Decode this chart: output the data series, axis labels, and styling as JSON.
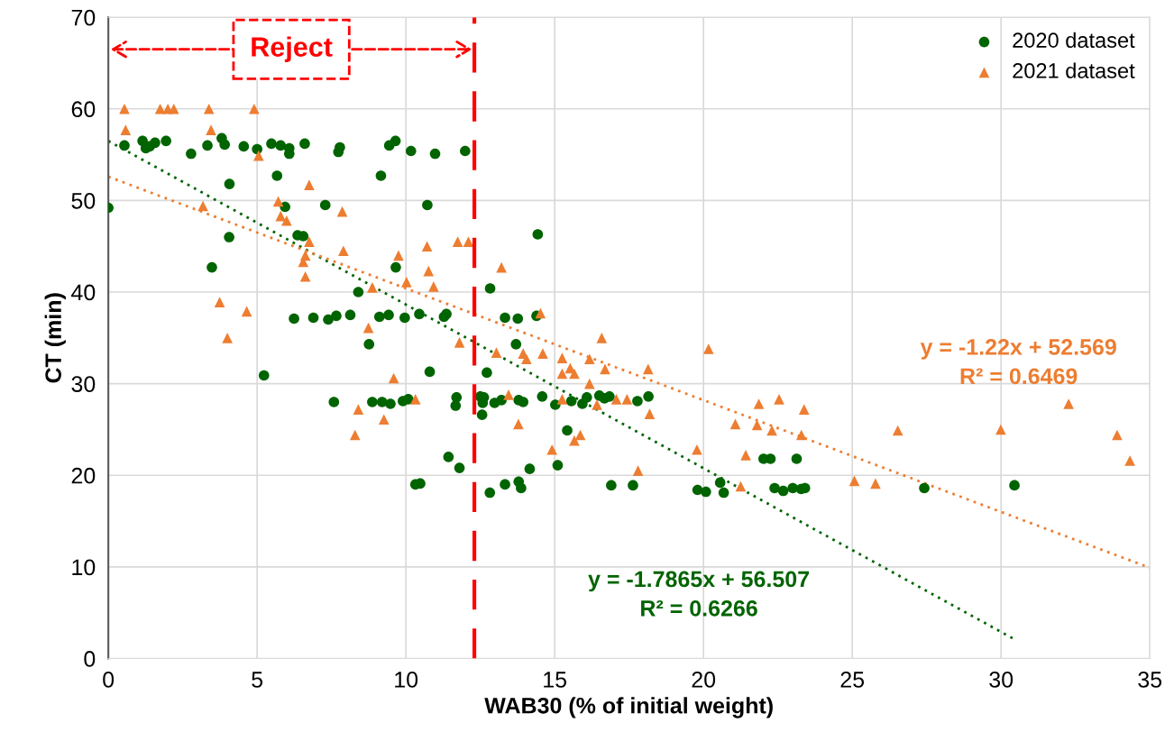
{
  "chart_data": {
    "type": "scatter",
    "xlabel": "WAB30 (% of initial weight)",
    "ylabel": "CT (min)",
    "xlim": [
      0,
      35
    ],
    "xticks": [
      0,
      5,
      10,
      15,
      20,
      25,
      30,
      35
    ],
    "ylim": [
      0,
      70
    ],
    "yticks": [
      0,
      10,
      20,
      30,
      40,
      50,
      60,
      70
    ],
    "grid": true,
    "legend": "top right",
    "series": [
      {
        "name": "2020 dataset",
        "color": "#006400",
        "marker": "circle",
        "x": [
          0,
          0.54,
          1.15,
          1.26,
          1.39,
          1.57,
          1.94,
          2.78,
          3.33,
          3.81,
          3.91,
          4.07,
          4.06,
          3.48,
          4.55,
          5.0,
          5.48,
          5.79,
          6.08,
          6.08,
          6.6,
          5.67,
          5.94,
          6.36,
          6.55,
          7.29,
          7.78,
          7.73,
          9.44,
          9.65,
          10.17,
          10.98,
          11.99,
          9.16,
          10.72,
          9.66,
          8.4,
          6.24,
          6.89,
          7.39,
          7.66,
          8.13,
          9.11,
          9.42,
          9.96,
          10.45,
          11.28,
          11.36,
          8.76,
          10.8,
          5.23,
          7.58,
          8.87,
          9.2,
          9.48,
          9.9,
          10.08,
          11.7,
          11.67,
          11.43,
          11.8,
          10.32,
          10.48,
          14.43,
          12.83,
          13.33,
          13.76,
          14.39,
          13.7,
          12.72,
          12.5,
          12.62,
          12.58,
          12.98,
          13.21,
          13.79,
          13.94,
          14.58,
          15.02,
          15.56,
          15.93,
          16.08,
          16.5,
          16.67,
          16.84,
          17.78,
          18.15,
          12.56,
          15.42,
          15.1,
          14.16,
          12.82,
          13.33,
          13.79,
          13.87,
          16.9,
          17.63,
          19.8,
          20.08,
          20.56,
          20.68,
          22.02,
          22.25,
          23.13,
          22.39,
          22.68,
          23.0,
          23.28,
          23.41,
          30.45,
          27.42
        ],
        "values": [
          49.2,
          56.0,
          56.5,
          55.7,
          55.9,
          56.3,
          56.5,
          55.1,
          56.0,
          56.8,
          56.1,
          51.8,
          46.0,
          42.7,
          55.9,
          55.6,
          56.2,
          56.0,
          55.7,
          55.1,
          56.2,
          52.7,
          49.3,
          46.2,
          46.1,
          49.5,
          55.8,
          55.3,
          56.0,
          56.5,
          55.4,
          55.1,
          55.4,
          52.7,
          49.5,
          42.7,
          40.0,
          37.1,
          37.2,
          37.0,
          37.4,
          37.5,
          37.3,
          37.5,
          37.2,
          37.6,
          37.3,
          37.6,
          34.3,
          31.3,
          30.9,
          28.0,
          28.0,
          28.0,
          27.8,
          28.1,
          28.3,
          28.5,
          27.6,
          22.0,
          20.8,
          19.0,
          19.1,
          46.3,
          40.4,
          37.2,
          37.1,
          37.4,
          34.3,
          31.2,
          28.6,
          28.5,
          27.9,
          27.9,
          28.2,
          28.2,
          28.0,
          28.6,
          27.7,
          28.1,
          27.8,
          28.5,
          28.7,
          28.4,
          28.6,
          28.1,
          28.6,
          26.6,
          24.9,
          21.1,
          20.7,
          18.1,
          19.0,
          19.3,
          18.6,
          18.9,
          18.9,
          18.4,
          18.2,
          19.2,
          18.1,
          21.8,
          21.8,
          21.8,
          18.6,
          18.3,
          18.6,
          18.5,
          18.6,
          18.9,
          18.6
        ]
      },
      {
        "name": "2021 dataset",
        "color": "#ed7d31",
        "marker": "triangle",
        "x": [
          0.54,
          0.58,
          1.74,
          2.0,
          2.2,
          3.38,
          3.45,
          4.9,
          5.05,
          6.75,
          3.18,
          5.71,
          7.86,
          5.79,
          5.99,
          6.75,
          6.62,
          6.55,
          7.9,
          6.62,
          9.75,
          10.71,
          10.76,
          10.93,
          10.02,
          8.87,
          11.74,
          12.1,
          3.74,
          4.65,
          4.0,
          8.74,
          11.8,
          9.59,
          10.32,
          8.4,
          9.26,
          8.29,
          13.21,
          14.52,
          13.04,
          13.94,
          14.05,
          14.6,
          15.25,
          15.25,
          15.52,
          15.66,
          16.17,
          16.17,
          16.58,
          16.69,
          18.14,
          20.17,
          13.45,
          15.25,
          16.42,
          17.07,
          17.43,
          18.19,
          13.78,
          15.66,
          15.86,
          14.91,
          17.8,
          19.78,
          21.25,
          21.42,
          21.07,
          21.86,
          21.8,
          22.3,
          22.54,
          23.38,
          23.29,
          32.27,
          29.99,
          26.53,
          33.9,
          34.33,
          25.07,
          25.78
        ],
        "values": [
          60.0,
          57.7,
          60.0,
          60.0,
          60.0,
          60.0,
          57.7,
          60.0,
          54.9,
          51.7,
          49.4,
          49.9,
          48.8,
          48.3,
          47.8,
          45.5,
          44.0,
          43.3,
          44.5,
          41.7,
          44.0,
          45.0,
          42.3,
          40.6,
          41.1,
          40.5,
          45.5,
          45.5,
          38.9,
          37.9,
          35.0,
          36.1,
          34.5,
          30.6,
          28.3,
          27.2,
          26.1,
          24.4,
          42.7,
          37.7,
          33.4,
          33.3,
          32.7,
          33.3,
          32.8,
          31.1,
          31.7,
          31.1,
          32.7,
          30.0,
          35.0,
          31.6,
          31.6,
          33.8,
          28.8,
          28.3,
          27.7,
          28.3,
          28.3,
          26.7,
          25.6,
          23.8,
          24.4,
          22.8,
          20.5,
          22.8,
          18.8,
          22.2,
          25.6,
          27.8,
          25.5,
          24.9,
          28.3,
          27.2,
          24.4,
          27.8,
          25.0,
          24.9,
          24.4,
          21.6,
          19.4,
          19.1
        ]
      },
      {
        "type": "line",
        "color": "#006400",
        "line_style": "dotted",
        "x": [
          0,
          30.45
        ],
        "values": [
          56.5,
          2.1
        ]
      },
      {
        "type": "line",
        "color": "#ed7d31",
        "line_style": "dotted",
        "x": [
          0,
          35
        ],
        "values": [
          52.6,
          9.9
        ]
      }
    ],
    "ref_lines": [
      {
        "axis": "x",
        "value": 12.3,
        "label": "Reject",
        "color": "#ff0000",
        "line_style": "dashed"
      }
    ],
    "annotations": [
      "y = -1.7865x + 56.507\nR² = 0.6266",
      "y = -1.22x + 52.569\nR² = 0.6469"
    ]
  }
}
